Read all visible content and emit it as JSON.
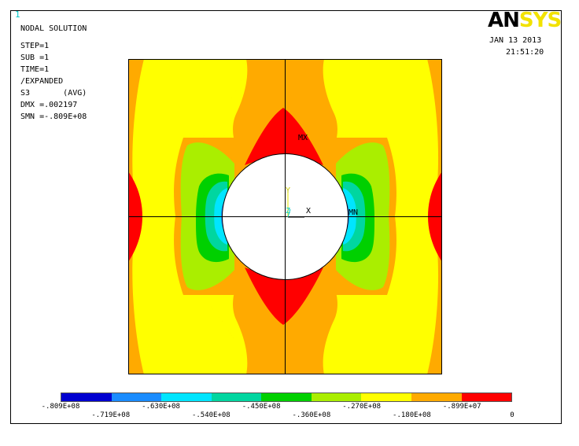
{
  "window_number": "1",
  "logo": {
    "part1": "AN",
    "part2": "SYS"
  },
  "info": {
    "title": "NODAL SOLUTION",
    "lines": [
      "STEP=1",
      "SUB =1",
      "TIME=1",
      "/EXPANDED",
      "S3       (AVG)",
      "DMX =.002197",
      "SMN =-.809E+08"
    ]
  },
  "date": "JAN 13 2013",
  "time": "21:51:20",
  "annotations": {
    "mx": "MX",
    "mn": "MN"
  },
  "triad": {
    "y": "Y",
    "z": "Z",
    "x": "X"
  },
  "legend": {
    "colors": [
      "#0000d0",
      "#1a8cff",
      "#00e5ff",
      "#00d6a0",
      "#00d000",
      "#aaee00",
      "#ffff00",
      "#ffaa00",
      "#ff0000"
    ],
    "labels_upper": [
      "-.809E+08",
      "-.630E+08",
      "-.450E+08",
      "-.270E+08",
      "-.899E+07"
    ],
    "labels_lower": [
      "-.719E+08",
      "-.540E+08",
      "-.360E+08",
      "-.180E+08",
      "0"
    ]
  }
}
